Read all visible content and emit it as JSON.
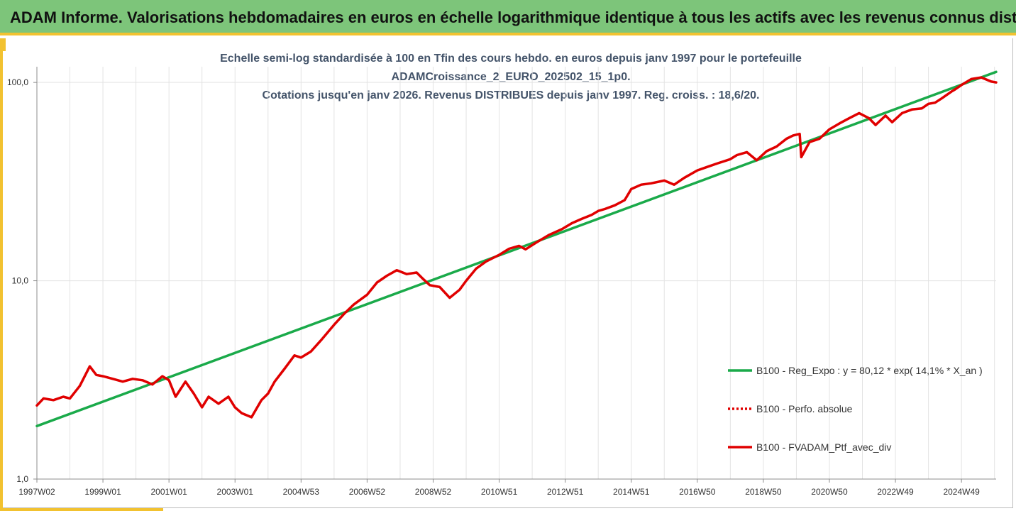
{
  "banner": {
    "title": "ADAM Informe. Valorisations hebdomadaires en euros en échelle logarithmique identique à tous les actifs avec les revenus connus distribués"
  },
  "colors": {
    "banner_bg": "#7dc57a",
    "accent": "#f2c230",
    "regression": "#1aaa4a",
    "portfolio": "#e00000",
    "title_text": "#44546a"
  },
  "chart_data": {
    "type": "line",
    "title_lines": [
      "Echelle semi-log standardisée à 100 en Tfin des cours hebdo.  en euros depuis janv 1997 pour le portefeuille",
      "ADAMCroissance_2_EURO_202502_15_1p0.",
      "Cotations jusqu'en janv 2026. Revenus DISTRIBUES depuis janv 1997. Reg. croiss. : 18,6/20."
    ],
    "y_scale": "log",
    "ylim": [
      1,
      120
    ],
    "y_ticks": [
      {
        "value": 1,
        "label": "1,0"
      },
      {
        "value": 10,
        "label": "10,0"
      },
      {
        "value": 100,
        "label": "100,0"
      }
    ],
    "xlim": [
      1997.0,
      2026.05
    ],
    "x_ticks": [
      {
        "value": 1997.0,
        "label": "1997W02"
      },
      {
        "value": 1999.0,
        "label": "1999W01"
      },
      {
        "value": 2001.0,
        "label": "2001W01"
      },
      {
        "value": 2003.0,
        "label": "2003W01"
      },
      {
        "value": 2005.0,
        "label": "2004W53"
      },
      {
        "value": 2007.0,
        "label": "2006W52"
      },
      {
        "value": 2009.0,
        "label": "2008W52"
      },
      {
        "value": 2011.0,
        "label": "2010W51"
      },
      {
        "value": 2013.0,
        "label": "2012W51"
      },
      {
        "value": 2015.0,
        "label": "2014W51"
      },
      {
        "value": 2017.0,
        "label": "2016W50"
      },
      {
        "value": 2019.0,
        "label": "2018W50"
      },
      {
        "value": 2021.0,
        "label": "2020W50"
      },
      {
        "value": 2023.0,
        "label": "2022W49"
      },
      {
        "value": 2025.0,
        "label": "2024W49"
      }
    ],
    "grid": "vertical",
    "legend_position": "bottom-right",
    "series": [
      {
        "name": "B100 - Reg_Expo : y = 80,12 * exp( 14,1% *  X_an )",
        "style": "solid",
        "color": "#1aaa4a",
        "x": [
          1997.0,
          2026.05
        ],
        "y": [
          1.85,
          113.0
        ]
      },
      {
        "name": "B100 - Perfo. absolue",
        "style": "dotted",
        "color": "#e00000",
        "x": [],
        "y": []
      },
      {
        "name": "B100 - FVADAM_Ptf_avec_div",
        "style": "solid",
        "color": "#e00000",
        "x": [
          1997.0,
          1997.2,
          1997.5,
          1997.8,
          1998.0,
          1998.3,
          1998.6,
          1998.8,
          1999.0,
          1999.3,
          1999.6,
          1999.9,
          2000.2,
          2000.5,
          2000.8,
          2001.0,
          2001.2,
          2001.5,
          2001.75,
          2002.0,
          2002.2,
          2002.5,
          2002.8,
          2003.0,
          2003.2,
          2003.5,
          2003.8,
          2004.0,
          2004.2,
          2004.5,
          2004.8,
          2005.0,
          2005.3,
          2005.6,
          2006.0,
          2006.3,
          2006.6,
          2007.0,
          2007.3,
          2007.6,
          2007.9,
          2008.2,
          2008.5,
          2008.7,
          2008.9,
          2009.2,
          2009.5,
          2009.8,
          2010.0,
          2010.3,
          2010.6,
          2011.0,
          2011.3,
          2011.6,
          2011.8,
          2012.1,
          2012.5,
          2012.9,
          2013.2,
          2013.5,
          2013.8,
          2014.0,
          2014.2,
          2014.5,
          2014.8,
          2015.0,
          2015.3,
          2015.6,
          2016.0,
          2016.3,
          2016.6,
          2017.0,
          2017.3,
          2017.6,
          2018.0,
          2018.2,
          2018.5,
          2018.8,
          2019.1,
          2019.4,
          2019.7,
          2019.9,
          2020.1,
          2020.15,
          2020.4,
          2020.7,
          2021.0,
          2021.3,
          2021.6,
          2021.9,
          2022.2,
          2022.4,
          2022.7,
          2022.9,
          2023.2,
          2023.5,
          2023.8,
          2024.0,
          2024.2,
          2024.4,
          2024.7,
          2024.8,
          2025.0,
          2025.3,
          2025.6,
          2025.9,
          2026.05
        ],
        "y": [
          2.35,
          2.55,
          2.5,
          2.6,
          2.55,
          2.95,
          3.7,
          3.35,
          3.3,
          3.2,
          3.1,
          3.2,
          3.15,
          3.0,
          3.3,
          3.15,
          2.6,
          3.1,
          2.7,
          2.3,
          2.6,
          2.4,
          2.6,
          2.3,
          2.15,
          2.05,
          2.5,
          2.7,
          3.1,
          3.6,
          4.2,
          4.1,
          4.4,
          5.0,
          6.0,
          6.8,
          7.6,
          8.5,
          9.8,
          10.6,
          11.3,
          10.8,
          11.0,
          10.2,
          9.5,
          9.3,
          8.2,
          9.0,
          10.0,
          11.5,
          12.5,
          13.5,
          14.5,
          15.0,
          14.4,
          15.5,
          17.0,
          18.2,
          19.5,
          20.5,
          21.5,
          22.5,
          23.0,
          24.0,
          25.5,
          29.0,
          30.5,
          31.0,
          32.0,
          30.5,
          33.0,
          36.0,
          37.5,
          39.0,
          41.0,
          43.0,
          44.5,
          40.5,
          45.0,
          47.5,
          52.0,
          54.0,
          55.0,
          42.0,
          50.0,
          52.0,
          58.0,
          62.0,
          66.0,
          70.0,
          66.0,
          61.0,
          68.0,
          63.0,
          70.0,
          73.0,
          74.0,
          78.0,
          79.0,
          83.0,
          90.0,
          92.0,
          97.0,
          104.0,
          106.0,
          101.0,
          100.0
        ]
      }
    ]
  }
}
